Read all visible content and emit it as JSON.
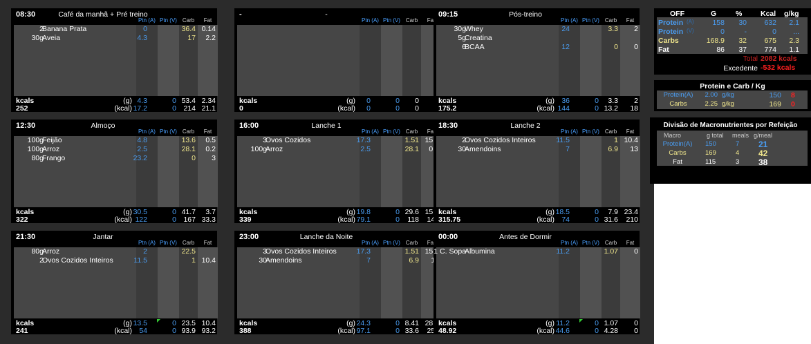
{
  "header_cols": {
    "p1": "Ptn (A)",
    "p2": "Ptn (V)",
    "carb": "Carb",
    "fat": "Fat"
  },
  "footer_units": {
    "g": "(g)",
    "kcal": "(kcal)",
    "label": "kcals"
  },
  "meals": [
    {
      "time": "08:30",
      "name": "Café da manhã + Pré treino",
      "items": [
        {
          "qty": "2",
          "food": "Banana Prata",
          "p1": "0",
          "p2": "",
          "carb": "36.4",
          "fat": "0.14"
        },
        {
          "qty": "30g",
          "food": "Aveia",
          "p1": "4.3",
          "p2": "",
          "carb": "17",
          "fat": "2.2"
        }
      ],
      "kcal": "252",
      "g": {
        "p1": "4.3",
        "p2": "0",
        "carb": "53.4",
        "fat": "2.34"
      },
      "k": {
        "p1": "17.2",
        "p2": "0",
        "carb": "214",
        "fat": "21.1"
      }
    },
    {
      "time": "-",
      "name": "-",
      "items": [],
      "kcal": "0",
      "g": {
        "p1": "0",
        "p2": "0",
        "carb": "0",
        "fat": "0"
      },
      "k": {
        "p1": "0",
        "p2": "0",
        "carb": "0",
        "fat": "0"
      }
    },
    {
      "time": "09:15",
      "name": "Pós-treino",
      "items": [
        {
          "qty": "30g",
          "food": "Whey",
          "p1": "24",
          "p2": "",
          "carb": "3.3",
          "fat": "2"
        },
        {
          "qty": "5g",
          "food": "Creatina",
          "p1": "",
          "p2": "",
          "carb": "",
          "fat": ""
        },
        {
          "qty": "6",
          "food": "BCAA",
          "p1": "12",
          "p2": "",
          "carb": "0",
          "fat": "0"
        }
      ],
      "kcal": "175.2",
      "g": {
        "p1": "36",
        "p2": "0",
        "carb": "3.3",
        "fat": "2"
      },
      "k": {
        "p1": "144",
        "p2": "0",
        "carb": "13.2",
        "fat": "18"
      }
    },
    {
      "time": "12:30",
      "name": "Almoço",
      "items": [
        {
          "qty": "100g",
          "food": "Feijão",
          "p1": "4.8",
          "p2": "",
          "carb": "13.6",
          "fat": "0.5"
        },
        {
          "qty": "100g",
          "food": "Arroz",
          "p1": "2.5",
          "p2": "",
          "carb": "28.1",
          "fat": "0.2"
        },
        {
          "qty": "80g",
          "food": "Frango",
          "p1": "23.2",
          "p2": "",
          "carb": "0",
          "fat": "3"
        }
      ],
      "kcal": "322",
      "g": {
        "p1": "30.5",
        "p2": "0",
        "carb": "41.7",
        "fat": "3.7"
      },
      "k": {
        "p1": "122",
        "p2": "0",
        "carb": "167",
        "fat": "33.3"
      }
    },
    {
      "time": "16:00",
      "name": "Lanche 1",
      "items": [
        {
          "qty": "3",
          "food": "Ovos Cozidos",
          "p1": "17.3",
          "p2": "",
          "carb": "1.51",
          "fat": "15.5"
        },
        {
          "qty": "100g",
          "food": "Arroz",
          "p1": "2.5",
          "p2": "",
          "carb": "28.1",
          "fat": "0.2"
        }
      ],
      "kcal": "339",
      "g": {
        "p1": "19.8",
        "p2": "0",
        "carb": "29.6",
        "fat": "15.7"
      },
      "k": {
        "p1": "79.1",
        "p2": "0",
        "carb": "118",
        "fat": "142"
      }
    },
    {
      "time": "18:30",
      "name": "Lanche 2",
      "items": [
        {
          "qty": "2",
          "food": "Ovos Cozidos Inteiros",
          "p1": "11.5",
          "p2": "",
          "carb": "1",
          "fat": "10.4"
        },
        {
          "qty": "30",
          "food": "Amendoins",
          "p1": "7",
          "p2": "",
          "carb": "6.9",
          "fat": "13"
        }
      ],
      "kcal": "315.75",
      "g": {
        "p1": "18.5",
        "p2": "0",
        "carb": "7.9",
        "fat": "23.4"
      },
      "k": {
        "p1": "74",
        "p2": "0",
        "carb": "31.6",
        "fat": "210"
      }
    },
    {
      "time": "21:30",
      "name": "Jantar",
      "items": [
        {
          "qty": "80g",
          "food": "Arroz",
          "p1": "2",
          "p2": "",
          "carb": "22.5",
          "fat": ""
        },
        {
          "qty": "2",
          "food": "Ovos Cozidos Inteiros",
          "p1": "11.5",
          "p2": "",
          "carb": "1",
          "fat": "10.4"
        }
      ],
      "kcal": "241",
      "g": {
        "p1": "13.5",
        "p2": "0",
        "carb": "23.5",
        "fat": "10.4"
      },
      "k": {
        "p1": "54",
        "p2": "0",
        "carb": "93.9",
        "fat": "93.2"
      }
    },
    {
      "time": "23:00",
      "name": "Lanche da Noite",
      "items": [
        {
          "qty": "3",
          "food": "Ovos Cozidos Inteiros",
          "p1": "17.3",
          "p2": "",
          "carb": "1.51",
          "fat": "15.5"
        },
        {
          "qty": "30",
          "food": "Amendoins",
          "p1": "7",
          "p2": "",
          "carb": "6.9",
          "fat": "13"
        }
      ],
      "kcal": "388",
      "g": {
        "p1": "24.3",
        "p2": "0",
        "carb": "8.41",
        "fat": "28.5"
      },
      "k": {
        "p1": "97.1",
        "p2": "0",
        "carb": "33.6",
        "fat": "257"
      }
    },
    {
      "time": "00:00",
      "name": "Antes de Dormir",
      "items": [
        {
          "qty": "1 C. Sopa",
          "food": "Albumina",
          "p1": "11.2",
          "p2": "",
          "carb": "1.07",
          "fat": "0"
        }
      ],
      "kcal": "48.92",
      "g": {
        "p1": "11.2",
        "p2": "0",
        "carb": "1.07",
        "fat": "0"
      },
      "k": {
        "p1": "44.6",
        "p2": "0",
        "carb": "4.28",
        "fat": "0"
      }
    }
  ],
  "totals": {
    "headers": {
      "off": "OFF",
      "g": "G",
      "pct": "%",
      "kcal": "Kcal",
      "gkg": "g/kg"
    },
    "rows": [
      {
        "label": "Protein",
        "sub": "(A)",
        "g": "158",
        "pct": "30",
        "kcal": "632",
        "gkg": "2.1"
      },
      {
        "label": "Protein",
        "sub": "(V)",
        "g": "0",
        "pct": "-",
        "kcal": "0",
        "gkg": "..."
      },
      {
        "label": "Carbs",
        "g": "168.9",
        "pct": "32",
        "kcal": "675",
        "gkg": "2.3"
      },
      {
        "label": "Fat",
        "g": "86",
        "pct": "37",
        "kcal": "774",
        "gkg": "1.1"
      }
    ],
    "total_label": "Total",
    "total_value": "2082 kcals",
    "excedente_label": "Excedente",
    "excedente_value": "-532 kcals"
  },
  "pc": {
    "title": "Protein e Carb / Kg",
    "rows": [
      {
        "label": "Protein(A)",
        "value": "2.00",
        "unit": "g/kg",
        "amount": "150",
        "delta": "8"
      },
      {
        "label": "Carbs",
        "value": "2.25",
        "unit": "g/kg",
        "amount": "169",
        "delta": "0"
      }
    ]
  },
  "div": {
    "title": "Divisão de Macronutrientes por Refeição",
    "headers": {
      "macro": "Macro",
      "gtotal": "g total",
      "meals": "meals",
      "gmeal": "g/meal"
    },
    "rows": [
      {
        "label": "Protein(A)",
        "gtotal": "150",
        "meals": "7",
        "gmeal": "21"
      },
      {
        "label": "Carbs",
        "gtotal": "169",
        "meals": "4",
        "gmeal": "42"
      },
      {
        "label": "Fat",
        "gtotal": "115",
        "meals": "3",
        "gmeal": "38"
      }
    ]
  },
  "colors": {
    "protein": "#4a9cf0",
    "carbs": "#f0e68c",
    "fat": "#ffffff",
    "alert": "#ff2020",
    "total": "#cc2222",
    "bg": "#2b2b2b",
    "panel": "#000000",
    "grid": "#464646"
  }
}
